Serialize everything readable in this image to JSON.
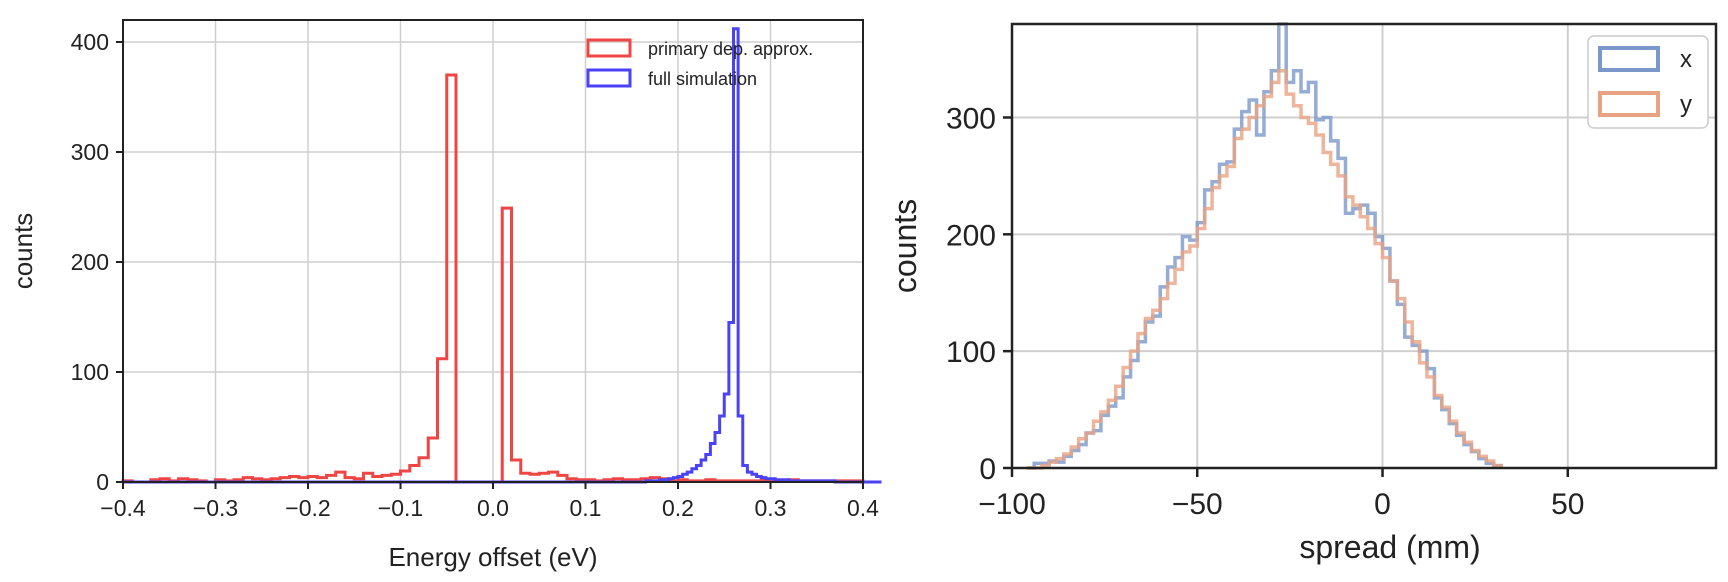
{
  "chart_data": [
    {
      "type": "histogram",
      "title": "",
      "xlabel": "Energy offset (eV)",
      "ylabel": "counts",
      "xlim": [
        -0.4,
        0.4
      ],
      "ylim": [
        0,
        420
      ],
      "xticks": [
        -0.4,
        -0.3,
        -0.2,
        -0.1,
        0.0,
        0.1,
        0.2,
        0.3,
        0.4
      ],
      "xtick_labels": [
        "−0.4",
        "−0.3",
        "−0.2",
        "−0.1",
        "0.0",
        "0.1",
        "0.2",
        "0.3",
        "0.4"
      ],
      "yticks": [
        0,
        100,
        200,
        300,
        400
      ],
      "ytick_labels": [
        "0",
        "100",
        "200",
        "300",
        "400"
      ],
      "grid": true,
      "legend_position": "top-right",
      "series": [
        {
          "name": "primary dep. approx.",
          "color": "#f04545",
          "bin_start": -0.4,
          "bin_width": 0.01,
          "counts": [
            1,
            0,
            0,
            2,
            3,
            1,
            3,
            2,
            1,
            0,
            2,
            1,
            2,
            4,
            3,
            2,
            3,
            4,
            5,
            4,
            5,
            4,
            6,
            9,
            4,
            3,
            8,
            5,
            6,
            7,
            10,
            15,
            22,
            40,
            112,
            370,
            0,
            0,
            0,
            0,
            0,
            249,
            20,
            8,
            7,
            8,
            9,
            6,
            3,
            2,
            2,
            1,
            2,
            3,
            2,
            2,
            3,
            4,
            3,
            1,
            2,
            1,
            1,
            2,
            1,
            1,
            1,
            1,
            1,
            2,
            1,
            1,
            2,
            1,
            1,
            1,
            1,
            1,
            1,
            1
          ]
        },
        {
          "name": "full simulation",
          "color": "#4a42f5",
          "bin_start": -0.4,
          "bin_width": 0.005,
          "counts": [
            0,
            0,
            0,
            0,
            0,
            0,
            0,
            0,
            0,
            0,
            0,
            0,
            0,
            0,
            0,
            0,
            0,
            0,
            0,
            0,
            0,
            0,
            0,
            0,
            0,
            0,
            0,
            0,
            0,
            0,
            0,
            0,
            0,
            0,
            0,
            0,
            0,
            0,
            0,
            0,
            0,
            0,
            0,
            0,
            0,
            0,
            0,
            0,
            0,
            0,
            0,
            0,
            0,
            0,
            0,
            0,
            0,
            0,
            0,
            0,
            0,
            0,
            0,
            0,
            0,
            0,
            0,
            0,
            0,
            0,
            0,
            0,
            0,
            0,
            0,
            0,
            0,
            0,
            0,
            0,
            0,
            0,
            0,
            0,
            0,
            0,
            0,
            0,
            0,
            0,
            0,
            0,
            0,
            0,
            0,
            0,
            0,
            0,
            0,
            0,
            0,
            0,
            0,
            0,
            0,
            0,
            0,
            0,
            0,
            0,
            0,
            0,
            0,
            1,
            1,
            1,
            2,
            2,
            3,
            4,
            5,
            7,
            9,
            12,
            15,
            20,
            25,
            35,
            45,
            60,
            80,
            145,
            412,
            60,
            15,
            9,
            7,
            5,
            4,
            3,
            3,
            2,
            2,
            2,
            1,
            1,
            1,
            1,
            1,
            1,
            1,
            1,
            1,
            1,
            0,
            0,
            0,
            0,
            0,
            0,
            0,
            0,
            0,
            0
          ]
        }
      ]
    },
    {
      "type": "histogram",
      "title": "",
      "xlabel": "spread (mm)",
      "ylabel": "counts",
      "xlim": [
        -100,
        90
      ],
      "ylim": [
        0,
        380
      ],
      "xticks": [
        -100,
        -50,
        0,
        50
      ],
      "xtick_labels": [
        "−100",
        "−50",
        "0",
        "50"
      ],
      "yticks": [
        0,
        100,
        200,
        300
      ],
      "ytick_labels": [
        "0",
        "100",
        "200",
        "300"
      ],
      "grid": true,
      "legend_position": "top-right",
      "series": [
        {
          "name": "x",
          "color": "#7a97c9",
          "bin_start": -96,
          "bin_width": 2,
          "counts": [
            0,
            4,
            4,
            6,
            5,
            10,
            15,
            20,
            30,
            32,
            45,
            53,
            60,
            78,
            92,
            108,
            125,
            130,
            155,
            172,
            180,
            198,
            195,
            210,
            238,
            245,
            260,
            262,
            290,
            305,
            315,
            285,
            322,
            340,
            380,
            330,
            340,
            322,
            330,
            298,
            300,
            280,
            265,
            218,
            222,
            225,
            218,
            198,
            188,
            160,
            140,
            112,
            105,
            100,
            85,
            60,
            50,
            38,
            28,
            20,
            14,
            8,
            4,
            2
          ]
        },
        {
          "name": "y",
          "color": "#e8a383",
          "bin_start": -96,
          "bin_width": 2,
          "counts": [
            0,
            0,
            2,
            5,
            8,
            12,
            18,
            25,
            30,
            40,
            48,
            58,
            70,
            86,
            100,
            115,
            128,
            135,
            145,
            158,
            170,
            185,
            190,
            205,
            222,
            240,
            250,
            258,
            282,
            290,
            300,
            310,
            318,
            330,
            340,
            320,
            310,
            300,
            295,
            285,
            270,
            260,
            250,
            232,
            225,
            215,
            205,
            192,
            180,
            160,
            145,
            125,
            108,
            90,
            78,
            62,
            52,
            40,
            30,
            22,
            15,
            10,
            6,
            2
          ]
        }
      ]
    }
  ]
}
